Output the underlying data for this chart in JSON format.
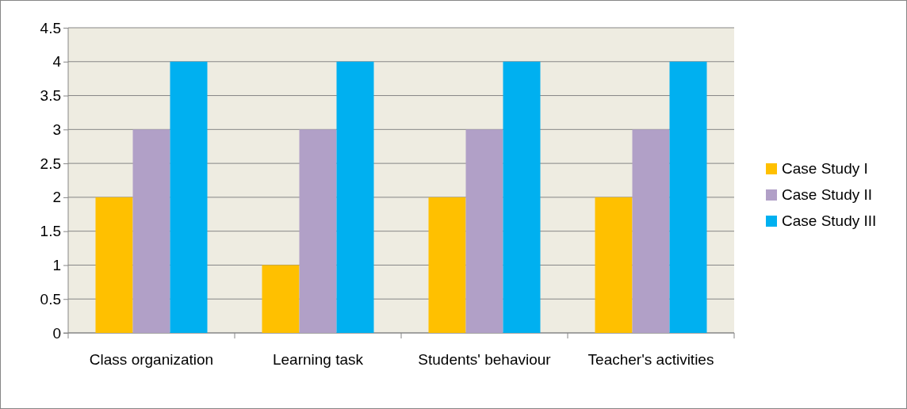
{
  "chart_data": {
    "type": "bar",
    "categories": [
      "Class organization",
      "Learning task",
      "Students' behaviour",
      "Teacher's activities"
    ],
    "series": [
      {
        "name": "Case Study I",
        "color": "#ffc000",
        "values": [
          2,
          1,
          2,
          2
        ]
      },
      {
        "name": "Case Study II",
        "color": "#b1a0c7",
        "values": [
          3,
          3,
          3,
          3
        ]
      },
      {
        "name": "Case Study III",
        "color": "#00b0f0",
        "values": [
          4,
          4,
          4,
          4
        ]
      }
    ],
    "ylim": [
      0,
      4.5
    ],
    "yticks": [
      0,
      0.5,
      1,
      1.5,
      2,
      2.5,
      3,
      3.5,
      4,
      4.5
    ],
    "grid": "y",
    "legend": "right"
  }
}
